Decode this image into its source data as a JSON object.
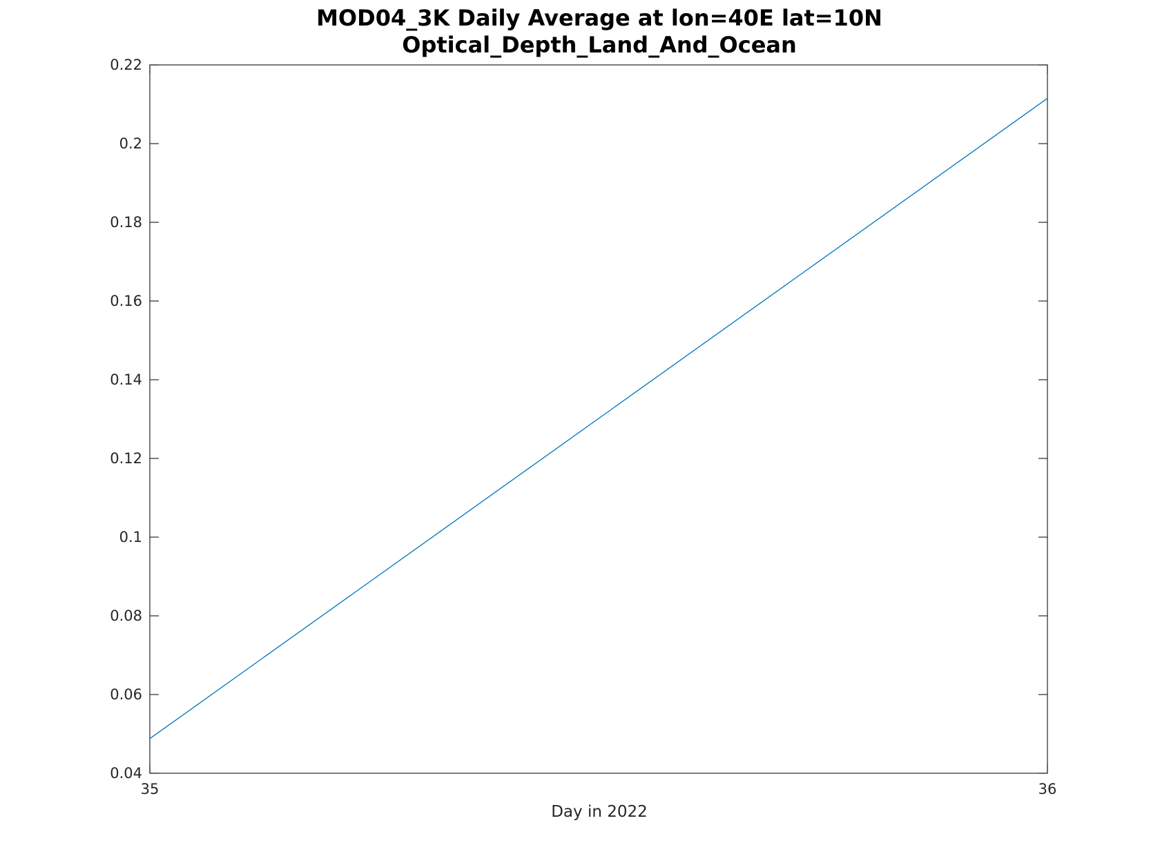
{
  "chart_data": {
    "type": "line",
    "title": "MOD04_3K Daily Average at lon=40E lat=10N",
    "subtitle": "Optical_Depth_Land_And_Ocean",
    "xlabel": "Day in 2022",
    "ylabel": "",
    "xlim": [
      35,
      36
    ],
    "ylim": [
      0.04,
      0.22
    ],
    "x_ticks": [
      35,
      36
    ],
    "x_tick_labels": [
      "35",
      "36"
    ],
    "y_ticks": [
      0.04,
      0.06,
      0.08,
      0.1,
      0.12,
      0.14,
      0.16,
      0.18,
      0.2,
      0.22
    ],
    "y_tick_labels": [
      "0.04",
      "0.06",
      "0.08",
      "0.1",
      "0.12",
      "0.14",
      "0.16",
      "0.18",
      "0.2",
      "0.22"
    ],
    "grid": false,
    "series": [
      {
        "x": [
          35,
          36
        ],
        "values": [
          0.0488,
          0.2115
        ],
        "color": "#0072BD"
      }
    ]
  }
}
